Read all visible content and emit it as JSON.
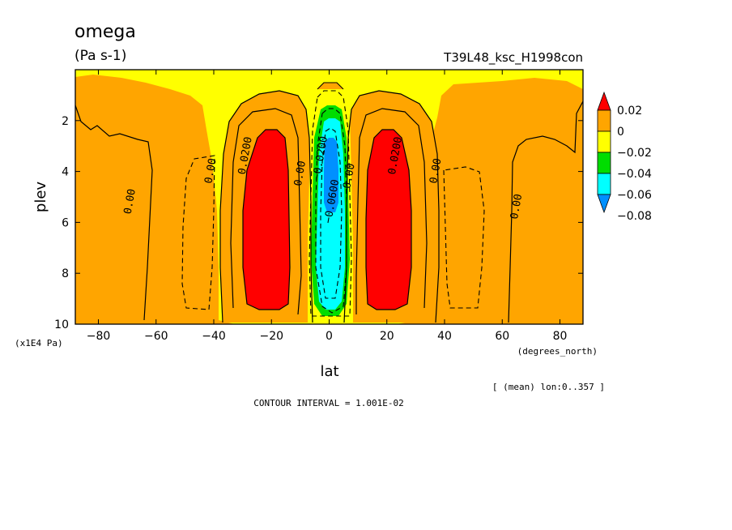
{
  "header": {
    "title": "omega",
    "units": "(Pa s-1)",
    "run": "T39L48_ksc_H1998con"
  },
  "footer": {
    "contour_interval": "CONTOUR INTERVAL = 1.001E-02",
    "mean_note": "[ (mean) lon:0..357 ]"
  },
  "colors": {
    "red": "#ff0000",
    "orange": "#ffa500",
    "yellow": "#ffff00",
    "green": "#00dd00",
    "cyan": "#00ffff",
    "blue": "#0090ff"
  },
  "chart_data": {
    "type": "heatmap",
    "subtype": "filled-contour",
    "title": "omega",
    "subtitle": "(Pa s-1)",
    "xlabel": "lat",
    "ylabel": "plev",
    "x_unit_label": "(degrees_north)",
    "y_unit_label": "(x1E4 Pa)",
    "xlim": [
      -88,
      88
    ],
    "ylim": [
      10,
      0
    ],
    "x_ticks": [
      -80,
      -60,
      -40,
      -20,
      0,
      20,
      40,
      60,
      80
    ],
    "x_tick_labels": [
      "−80",
      "−60",
      "−40",
      "−20",
      "0",
      "20",
      "40",
      "60",
      "80"
    ],
    "y_ticks": [
      2,
      4,
      6,
      8,
      10
    ],
    "y_tick_labels": [
      "2",
      "4",
      "6",
      "8",
      "10"
    ],
    "colorbar": {
      "levels": [
        0.02,
        0,
        -0.02,
        -0.04,
        -0.06,
        -0.08
      ],
      "labels": [
        "0.02",
        "0",
        "−0.02",
        "−0.04",
        "−0.06",
        "−0.08"
      ],
      "colors": [
        "#ff0000",
        "#ffa500",
        "#ffff00",
        "#00dd00",
        "#00ffff",
        "#0090ff"
      ]
    },
    "regions": [
      {
        "name": "background",
        "fill": "orange",
        "level": 0.0
      },
      {
        "name": "yellow-band-south",
        "fill": "yellow",
        "level": -0.01,
        "lat_range": [
          -60,
          -35
        ]
      },
      {
        "name": "yellow-band-north",
        "fill": "yellow",
        "level": -0.01,
        "lat_range": [
          35,
          62
        ]
      },
      {
        "name": "yellow-core",
        "fill": "yellow",
        "level": -0.01,
        "lat_range": [
          -8,
          8
        ]
      },
      {
        "name": "red-south",
        "fill": "red",
        "level": 0.02,
        "lat_range": [
          -33,
          -18
        ],
        "plev_range": [
          2.6,
          9.4
        ]
      },
      {
        "name": "red-north",
        "fill": "red",
        "level": 0.02,
        "lat_range": [
          17,
          33
        ],
        "plev_range": [
          2.6,
          9.4
        ]
      },
      {
        "name": "green-ring",
        "fill": "green",
        "level": -0.03,
        "lat_range": [
          -6,
          6
        ],
        "plev_range": [
          1.5,
          9.8
        ]
      },
      {
        "name": "cyan-core",
        "fill": "cyan",
        "level": -0.05,
        "lat_range": [
          -4,
          4
        ],
        "plev_range": [
          2.0,
          9.4
        ]
      },
      {
        "name": "blue-core",
        "fill": "blue",
        "level": -0.07,
        "lat_range": [
          -2,
          2
        ],
        "plev_range": [
          2.5,
          5.5
        ]
      }
    ],
    "contour_labels": [
      {
        "text": "0.00",
        "lat": -68,
        "plev": 5.2
      },
      {
        "text": "0.00",
        "lat": -40,
        "plev": 4.0
      },
      {
        "text": "0.0200",
        "lat": -28,
        "plev": 3.4
      },
      {
        "text": "0.00",
        "lat": -9,
        "plev": 4.1
      },
      {
        "text": "−0.0200",
        "lat": -2,
        "plev": 3.5
      },
      {
        "text": "−0.0600",
        "lat": 2,
        "plev": 5.2
      },
      {
        "text": "0.00",
        "lat": 8,
        "plev": 4.2
      },
      {
        "text": "0.0200",
        "lat": 24,
        "plev": 3.4
      },
      {
        "text": "0.00",
        "lat": 38,
        "plev": 4.0
      },
      {
        "text": "0.00",
        "lat": 66,
        "plev": 5.4
      }
    ]
  }
}
